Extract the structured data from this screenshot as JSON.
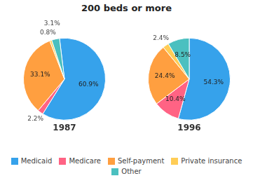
{
  "chart_data": {
    "type": "pie",
    "title": "200 beds or more",
    "categories": [
      "Medicaid",
      "Medicare",
      "Self-payment",
      "Private insurance",
      "Other"
    ],
    "series": [
      {
        "name": "1987",
        "values": [
          60.9,
          2.2,
          33.1,
          0.8,
          3.1
        ],
        "value_labels": [
          "60.9%",
          "2.2%",
          "33.1%",
          "0.8%",
          "3.1%"
        ]
      },
      {
        "name": "1996",
        "values": [
          54.3,
          10.4,
          24.4,
          2.4,
          8.5
        ],
        "value_labels": [
          "54.3%",
          "10.4%",
          "24.4%",
          "2.4%",
          "8.5%"
        ]
      }
    ],
    "colors": [
      "#36a2eb",
      "#ff6384",
      "#ff9f40",
      "#ffcd56",
      "#4bc0c0"
    ],
    "data_labels": true,
    "legend": "bottom"
  }
}
